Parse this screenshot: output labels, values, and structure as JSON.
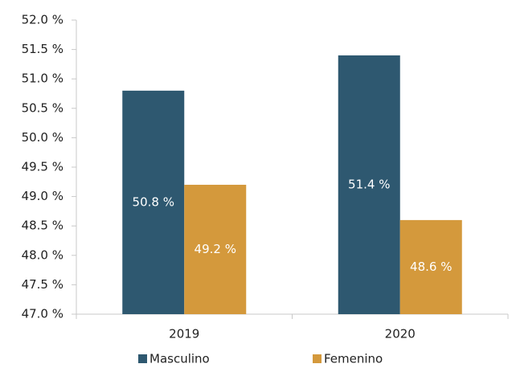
{
  "chart_data": {
    "type": "bar",
    "categories": [
      "2019",
      "2020"
    ],
    "series": [
      {
        "name": "Masculino",
        "color": "#2e5870",
        "values": [
          50.8,
          51.4
        ],
        "value_labels": [
          "50.8 %",
          "51.4 %"
        ]
      },
      {
        "name": "Femenino",
        "color": "#d4993c",
        "values": [
          49.2,
          48.6
        ],
        "value_labels": [
          "49.2 %",
          "48.6 %"
        ]
      }
    ],
    "ylim": [
      47,
      52
    ],
    "yticks": [
      {
        "value": 47,
        "label": "47.0 %"
      },
      {
        "value": 47.5,
        "label": "47.5 %"
      },
      {
        "value": 48,
        "label": "48.0 %"
      },
      {
        "value": 48.5,
        "label": "48.5 %"
      },
      {
        "value": 49,
        "label": "49.0 %"
      },
      {
        "value": 49.5,
        "label": "49.5 %"
      },
      {
        "value": 50,
        "label": "50.0 %"
      },
      {
        "value": 50.5,
        "label": "50.5 %"
      },
      {
        "value": 51,
        "label": "51.0 %"
      },
      {
        "value": 51.5,
        "label": "51.5 %"
      },
      {
        "value": 52,
        "label": "52.0 %"
      }
    ],
    "grid": false,
    "legend": "bottom"
  }
}
